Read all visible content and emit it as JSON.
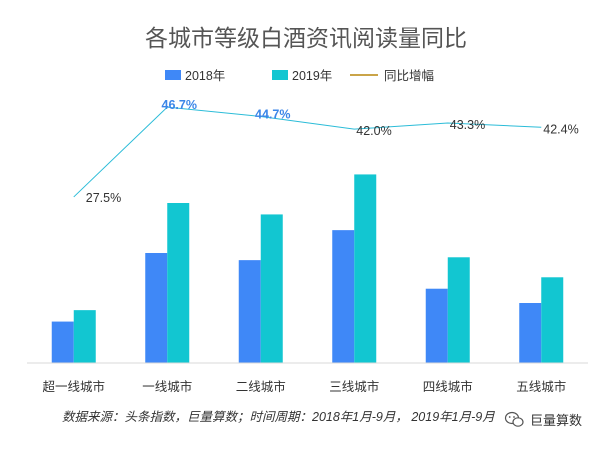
{
  "chart_data": {
    "type": "bar",
    "title": "各城市等级白酒资讯阅读量同比",
    "categories": [
      "超一线城市",
      "一线城市",
      "二线城市",
      "三线城市",
      "四线城市",
      "五线城市"
    ],
    "series": [
      {
        "name": "2018年",
        "values": [
          29,
          77,
          72,
          93,
          52,
          42
        ],
        "color": "#3f88f7"
      },
      {
        "name": "2019年",
        "values": [
          37,
          112,
          104,
          132,
          74,
          60
        ],
        "color": "#12c6d1"
      }
    ],
    "yoy": {
      "name": "同比增幅",
      "values": [
        27.5,
        46.7,
        44.7,
        42.0,
        43.3,
        42.4
      ],
      "labels": [
        "27.5%",
        "46.7%",
        "44.7%",
        "42.0%",
        "43.3%",
        "42.4%"
      ],
      "highlight": [
        false,
        true,
        true,
        false,
        false,
        false
      ],
      "color": "#2bbcd8",
      "legend_color": "#b8860b"
    },
    "ylim": [
      0,
      140
    ],
    "yoy_lim": [
      -8,
      54
    ],
    "legend_position": "top-center",
    "grid": false
  },
  "footer": {
    "source": "数据来源：头条指数，巨量算数；时间周期：2018年1月-9月， 2019年1月-9月",
    "watermark": "巨量算数",
    "watermark_icon": "wechat-icon"
  }
}
